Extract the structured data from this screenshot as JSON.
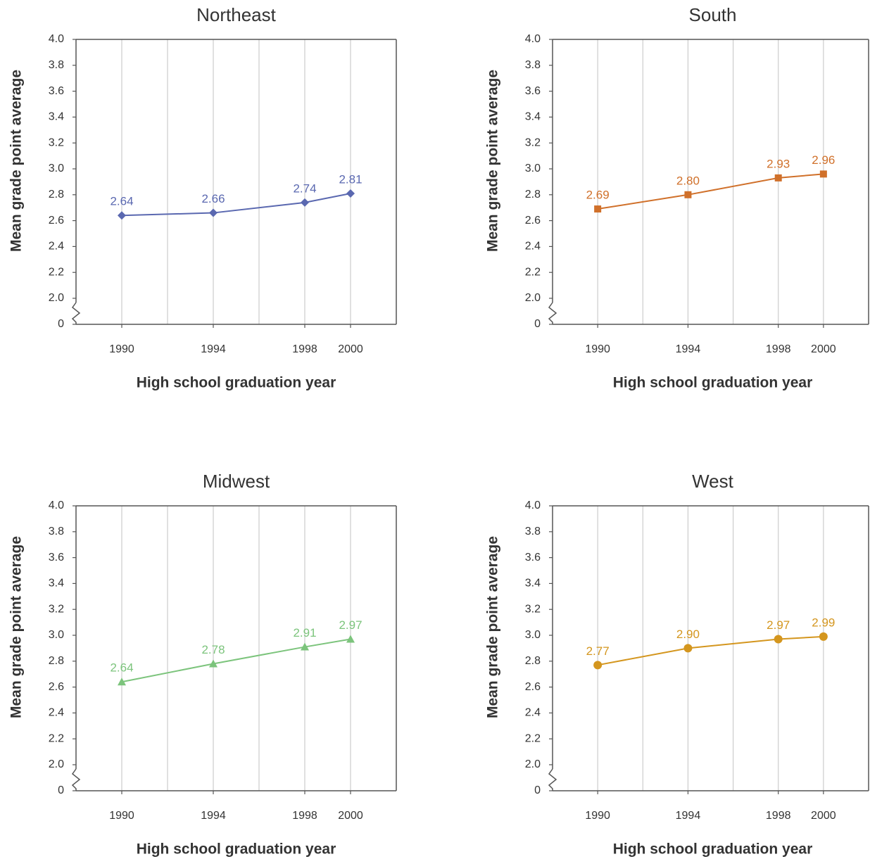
{
  "chart_data": [
    {
      "type": "line",
      "title": "Northeast",
      "xlabel": "High school graduation year",
      "ylabel": "Mean grade point average",
      "x": [
        1990,
        1994,
        1998,
        2000
      ],
      "xlim": [
        1988,
        2002
      ],
      "xticks": [
        1990,
        1994,
        1998,
        2000
      ],
      "xgrid": [
        1990,
        1992,
        1994,
        1996,
        1998,
        2000
      ],
      "ylim": [
        0,
        4
      ],
      "ybreak": [
        0,
        2
      ],
      "yticks": [
        0,
        {
          "value": 2,
          "label": "2.0"
        },
        2.2,
        2.4,
        2.6,
        2.8,
        {
          "value": 3,
          "label": "3.0"
        },
        3.2,
        3.4,
        3.6,
        3.8,
        {
          "value": 4,
          "label": "4.0"
        }
      ],
      "series": [
        {
          "name": "Northeast",
          "color": "#5a68b0",
          "marker": "diamond",
          "values": [
            2.64,
            2.66,
            2.74,
            2.81
          ]
        }
      ]
    },
    {
      "type": "line",
      "title": "South",
      "xlabel": "High school graduation year",
      "ylabel": "Mean grade point average",
      "x": [
        1990,
        1994,
        1998,
        2000
      ],
      "xlim": [
        1988,
        2002
      ],
      "xticks": [
        1990,
        1994,
        1998,
        2000
      ],
      "xgrid": [
        1990,
        1992,
        1994,
        1996,
        1998,
        2000
      ],
      "ylim": [
        0,
        4
      ],
      "ybreak": [
        0,
        2
      ],
      "yticks": [
        0,
        {
          "value": 2,
          "label": "2.0"
        },
        2.2,
        2.4,
        2.6,
        2.8,
        {
          "value": 3,
          "label": "3.0"
        },
        3.2,
        3.4,
        3.6,
        3.8,
        {
          "value": 4,
          "label": "4.0"
        }
      ],
      "series": [
        {
          "name": "South",
          "color": "#d0702a",
          "marker": "square",
          "values": [
            2.69,
            2.8,
            2.93,
            2.96
          ],
          "value_labels": [
            "2.69",
            "2.80",
            "2.93",
            "2.96"
          ]
        }
      ]
    },
    {
      "type": "line",
      "title": "Midwest",
      "xlabel": "High school graduation year",
      "ylabel": "Mean grade point average",
      "x": [
        1990,
        1994,
        1998,
        2000
      ],
      "xlim": [
        1988,
        2002
      ],
      "xticks": [
        1990,
        1994,
        1998,
        2000
      ],
      "xgrid": [
        1990,
        1992,
        1994,
        1996,
        1998,
        2000
      ],
      "ylim": [
        0,
        4
      ],
      "ybreak": [
        0,
        2
      ],
      "yticks": [
        0,
        {
          "value": 2,
          "label": "2.0"
        },
        2.2,
        2.4,
        2.6,
        2.8,
        {
          "value": 3,
          "label": "3.0"
        },
        3.2,
        3.4,
        3.6,
        3.8,
        {
          "value": 4,
          "label": "4.0"
        }
      ],
      "series": [
        {
          "name": "Midwest",
          "color": "#7cc47c",
          "marker": "triangle",
          "values": [
            2.64,
            2.78,
            2.91,
            2.97
          ]
        }
      ]
    },
    {
      "type": "line",
      "title": "West",
      "xlabel": "High school graduation year",
      "ylabel": "Mean grade point average",
      "x": [
        1990,
        1994,
        1998,
        2000
      ],
      "xlim": [
        1988,
        2002
      ],
      "xticks": [
        1990,
        1994,
        1998,
        2000
      ],
      "xgrid": [
        1990,
        1992,
        1994,
        1996,
        1998,
        2000
      ],
      "ylim": [
        0,
        4
      ],
      "ybreak": [
        0,
        2
      ],
      "yticks": [
        0,
        {
          "value": 2,
          "label": "2.0"
        },
        2.2,
        2.4,
        2.6,
        2.8,
        {
          "value": 3,
          "label": "3.0"
        },
        3.2,
        3.4,
        3.6,
        3.8,
        {
          "value": 4,
          "label": "4.0"
        }
      ],
      "series": [
        {
          "name": "West",
          "color": "#d4961e",
          "marker": "circle",
          "values": [
            2.77,
            2.9,
            2.97,
            2.99
          ],
          "value_labels": [
            "2.77",
            "2.90",
            "2.97",
            "2.99"
          ]
        }
      ]
    }
  ]
}
